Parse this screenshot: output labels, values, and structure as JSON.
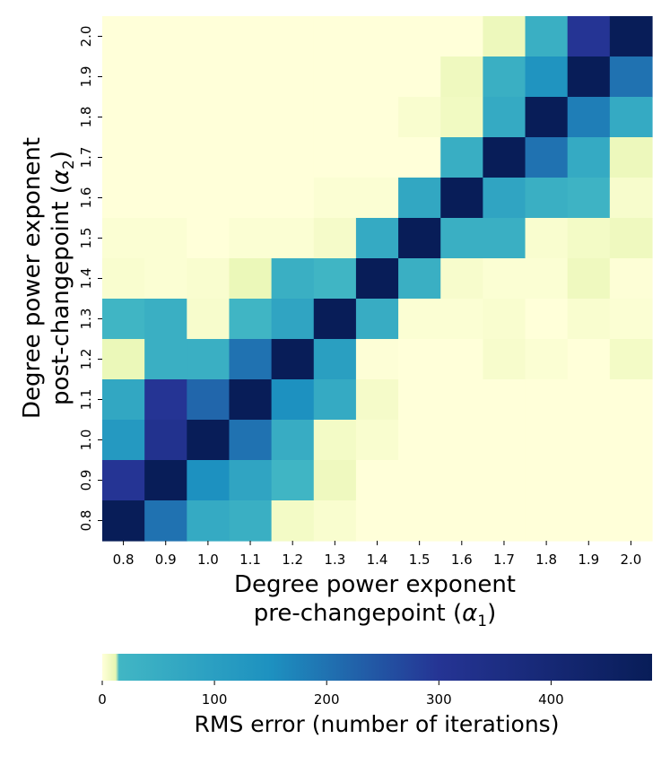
{
  "chart_data": {
    "type": "heatmap",
    "x_ticks": [
      "0.8",
      "0.9",
      "1.0",
      "1.1",
      "1.2",
      "1.3",
      "1.4",
      "1.5",
      "1.6",
      "1.7",
      "1.8",
      "1.9",
      "2.0"
    ],
    "y_ticks": [
      "0.8",
      "0.9",
      "1.0",
      "1.1",
      "1.2",
      "1.3",
      "1.4",
      "1.5",
      "1.6",
      "1.7",
      "1.8",
      "1.9",
      "2.0"
    ],
    "xlabel_line1": "Degree power exponent",
    "xlabel_line2": "pre-changepoint (",
    "xlabel_symbol": "α",
    "xlabel_sub": "1",
    "ylabel_line1": "Degree power exponent",
    "ylabel_line2": "post-changepoint (",
    "ylabel_symbol": "α",
    "ylabel_sub": "2",
    "label_close": ")",
    "colorbar_label": "RMS error (number of iterations)",
    "colorbar_ticks": [
      "0",
      "100",
      "200",
      "300",
      "400"
    ],
    "colorbar_tick_values": [
      0,
      100,
      200,
      300,
      400
    ],
    "vmin": 0,
    "vmax": 490,
    "colormap": "YlGnBu",
    "colormap_stops": [
      {
        "v": 0,
        "c": "#ffffd9"
      },
      {
        "v": 12,
        "c": "#e7f6b2"
      },
      {
        "v": 15,
        "c": "#41b6c4"
      },
      {
        "v": 150,
        "c": "#1d91c0"
      },
      {
        "v": 300,
        "c": "#253494"
      },
      {
        "v": 490,
        "c": "#081d58"
      }
    ],
    "rows_top_to_bottom_alpha2": [
      "2.0",
      "1.9",
      "1.8",
      "1.7",
      "1.6",
      "1.5",
      "1.4",
      "1.3",
      "1.2",
      "1.1",
      "1.0",
      "0.9",
      "0.8"
    ],
    "values": [
      [
        0,
        0,
        0,
        0,
        0,
        0,
        0,
        0,
        0,
        9,
        40,
        300,
        490
      ],
      [
        0,
        0,
        0,
        0,
        0,
        0,
        0,
        0,
        8,
        40,
        140,
        490,
        200
      ],
      [
        0,
        0,
        0,
        0,
        0,
        0,
        0,
        3,
        7,
        60,
        490,
        180,
        60
      ],
      [
        0,
        0,
        0,
        0,
        0,
        0,
        0,
        0,
        45,
        490,
        200,
        60,
        9
      ],
      [
        0,
        0,
        0,
        0,
        0,
        2,
        2,
        70,
        490,
        80,
        40,
        25,
        4
      ],
      [
        2,
        2,
        0,
        2,
        2,
        5,
        60,
        490,
        40,
        40,
        3,
        6,
        8
      ],
      [
        3,
        2,
        3,
        10,
        40,
        20,
        490,
        40,
        4,
        2,
        2,
        8,
        1
      ],
      [
        20,
        40,
        4,
        20,
        80,
        490,
        50,
        2,
        2,
        3,
        0,
        3,
        2
      ],
      [
        10,
        40,
        40,
        200,
        490,
        100,
        1,
        0,
        0,
        4,
        2,
        0,
        6
      ],
      [
        70,
        300,
        220,
        490,
        150,
        60,
        5,
        0,
        0,
        0,
        0,
        0,
        0
      ],
      [
        120,
        320,
        490,
        200,
        50,
        6,
        3,
        0,
        0,
        0,
        0,
        0,
        0
      ],
      [
        300,
        490,
        150,
        80,
        20,
        8,
        0,
        0,
        0,
        0,
        0,
        0,
        0
      ],
      [
        490,
        200,
        60,
        40,
        6,
        3,
        0,
        0,
        0,
        0,
        0,
        0,
        0
      ]
    ]
  }
}
